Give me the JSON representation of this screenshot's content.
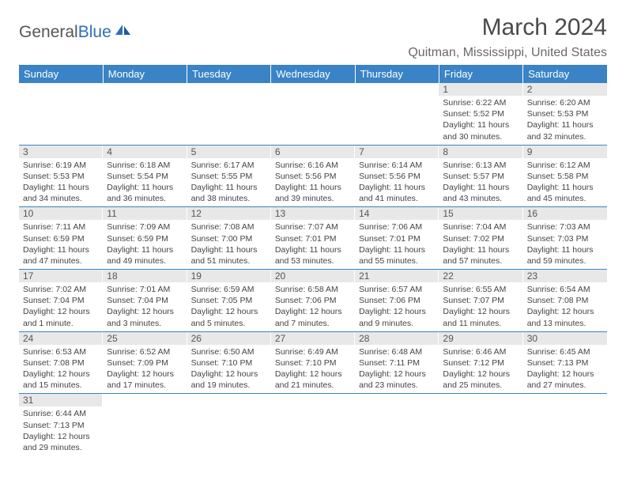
{
  "logo": {
    "text1": "General",
    "text2": "Blue"
  },
  "title": "March 2024",
  "location": "Quitman, Mississippi, United States",
  "colors": {
    "header_bg": "#3a83c6",
    "header_text": "#ffffff",
    "daynum_bg": "#e8e8e8",
    "border": "#3a83c6",
    "logo_blue": "#2e6fb5"
  },
  "weekdays": [
    "Sunday",
    "Monday",
    "Tuesday",
    "Wednesday",
    "Thursday",
    "Friday",
    "Saturday"
  ],
  "weeks": [
    [
      null,
      null,
      null,
      null,
      null,
      {
        "n": "1",
        "sr": "Sunrise: 6:22 AM",
        "ss": "Sunset: 5:52 PM",
        "dl": "Daylight: 11 hours and 30 minutes."
      },
      {
        "n": "2",
        "sr": "Sunrise: 6:20 AM",
        "ss": "Sunset: 5:53 PM",
        "dl": "Daylight: 11 hours and 32 minutes."
      }
    ],
    [
      {
        "n": "3",
        "sr": "Sunrise: 6:19 AM",
        "ss": "Sunset: 5:53 PM",
        "dl": "Daylight: 11 hours and 34 minutes."
      },
      {
        "n": "4",
        "sr": "Sunrise: 6:18 AM",
        "ss": "Sunset: 5:54 PM",
        "dl": "Daylight: 11 hours and 36 minutes."
      },
      {
        "n": "5",
        "sr": "Sunrise: 6:17 AM",
        "ss": "Sunset: 5:55 PM",
        "dl": "Daylight: 11 hours and 38 minutes."
      },
      {
        "n": "6",
        "sr": "Sunrise: 6:16 AM",
        "ss": "Sunset: 5:56 PM",
        "dl": "Daylight: 11 hours and 39 minutes."
      },
      {
        "n": "7",
        "sr": "Sunrise: 6:14 AM",
        "ss": "Sunset: 5:56 PM",
        "dl": "Daylight: 11 hours and 41 minutes."
      },
      {
        "n": "8",
        "sr": "Sunrise: 6:13 AM",
        "ss": "Sunset: 5:57 PM",
        "dl": "Daylight: 11 hours and 43 minutes."
      },
      {
        "n": "9",
        "sr": "Sunrise: 6:12 AM",
        "ss": "Sunset: 5:58 PM",
        "dl": "Daylight: 11 hours and 45 minutes."
      }
    ],
    [
      {
        "n": "10",
        "sr": "Sunrise: 7:11 AM",
        "ss": "Sunset: 6:59 PM",
        "dl": "Daylight: 11 hours and 47 minutes."
      },
      {
        "n": "11",
        "sr": "Sunrise: 7:09 AM",
        "ss": "Sunset: 6:59 PM",
        "dl": "Daylight: 11 hours and 49 minutes."
      },
      {
        "n": "12",
        "sr": "Sunrise: 7:08 AM",
        "ss": "Sunset: 7:00 PM",
        "dl": "Daylight: 11 hours and 51 minutes."
      },
      {
        "n": "13",
        "sr": "Sunrise: 7:07 AM",
        "ss": "Sunset: 7:01 PM",
        "dl": "Daylight: 11 hours and 53 minutes."
      },
      {
        "n": "14",
        "sr": "Sunrise: 7:06 AM",
        "ss": "Sunset: 7:01 PM",
        "dl": "Daylight: 11 hours and 55 minutes."
      },
      {
        "n": "15",
        "sr": "Sunrise: 7:04 AM",
        "ss": "Sunset: 7:02 PM",
        "dl": "Daylight: 11 hours and 57 minutes."
      },
      {
        "n": "16",
        "sr": "Sunrise: 7:03 AM",
        "ss": "Sunset: 7:03 PM",
        "dl": "Daylight: 11 hours and 59 minutes."
      }
    ],
    [
      {
        "n": "17",
        "sr": "Sunrise: 7:02 AM",
        "ss": "Sunset: 7:04 PM",
        "dl": "Daylight: 12 hours and 1 minute."
      },
      {
        "n": "18",
        "sr": "Sunrise: 7:01 AM",
        "ss": "Sunset: 7:04 PM",
        "dl": "Daylight: 12 hours and 3 minutes."
      },
      {
        "n": "19",
        "sr": "Sunrise: 6:59 AM",
        "ss": "Sunset: 7:05 PM",
        "dl": "Daylight: 12 hours and 5 minutes."
      },
      {
        "n": "20",
        "sr": "Sunrise: 6:58 AM",
        "ss": "Sunset: 7:06 PM",
        "dl": "Daylight: 12 hours and 7 minutes."
      },
      {
        "n": "21",
        "sr": "Sunrise: 6:57 AM",
        "ss": "Sunset: 7:06 PM",
        "dl": "Daylight: 12 hours and 9 minutes."
      },
      {
        "n": "22",
        "sr": "Sunrise: 6:55 AM",
        "ss": "Sunset: 7:07 PM",
        "dl": "Daylight: 12 hours and 11 minutes."
      },
      {
        "n": "23",
        "sr": "Sunrise: 6:54 AM",
        "ss": "Sunset: 7:08 PM",
        "dl": "Daylight: 12 hours and 13 minutes."
      }
    ],
    [
      {
        "n": "24",
        "sr": "Sunrise: 6:53 AM",
        "ss": "Sunset: 7:08 PM",
        "dl": "Daylight: 12 hours and 15 minutes."
      },
      {
        "n": "25",
        "sr": "Sunrise: 6:52 AM",
        "ss": "Sunset: 7:09 PM",
        "dl": "Daylight: 12 hours and 17 minutes."
      },
      {
        "n": "26",
        "sr": "Sunrise: 6:50 AM",
        "ss": "Sunset: 7:10 PM",
        "dl": "Daylight: 12 hours and 19 minutes."
      },
      {
        "n": "27",
        "sr": "Sunrise: 6:49 AM",
        "ss": "Sunset: 7:10 PM",
        "dl": "Daylight: 12 hours and 21 minutes."
      },
      {
        "n": "28",
        "sr": "Sunrise: 6:48 AM",
        "ss": "Sunset: 7:11 PM",
        "dl": "Daylight: 12 hours and 23 minutes."
      },
      {
        "n": "29",
        "sr": "Sunrise: 6:46 AM",
        "ss": "Sunset: 7:12 PM",
        "dl": "Daylight: 12 hours and 25 minutes."
      },
      {
        "n": "30",
        "sr": "Sunrise: 6:45 AM",
        "ss": "Sunset: 7:13 PM",
        "dl": "Daylight: 12 hours and 27 minutes."
      }
    ],
    [
      {
        "n": "31",
        "sr": "Sunrise: 6:44 AM",
        "ss": "Sunset: 7:13 PM",
        "dl": "Daylight: 12 hours and 29 minutes."
      },
      null,
      null,
      null,
      null,
      null,
      null
    ]
  ]
}
